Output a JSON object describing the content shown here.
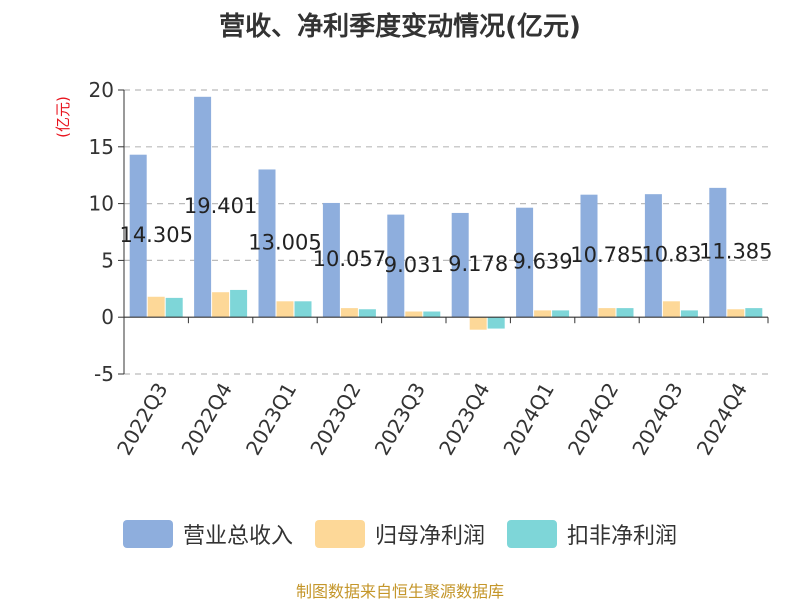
{
  "title": "营收、净利季度变动情况(亿元)",
  "source": "制图数据来自恒生聚源数据库",
  "colors": {
    "revenue": "#8eaedd",
    "net_profit": "#fdd898",
    "deducted_net_profit": "#7ed6d8",
    "unit_label": "#e8121c",
    "source": "#c4962a"
  },
  "chart_data": {
    "type": "bar",
    "title": "营收、净利季度变动情况(亿元)",
    "ylabel": "(亿元)",
    "ylim": [
      -5,
      20
    ],
    "yticks": [
      20,
      15,
      10,
      5,
      0,
      -5
    ],
    "grid": true,
    "legend_position": "bottom",
    "categories": [
      "2022Q3",
      "2022Q4",
      "2023Q1",
      "2023Q2",
      "2023Q3",
      "2023Q4",
      "2024Q1",
      "2024Q2",
      "2024Q3",
      "2024Q4"
    ],
    "series": [
      {
        "name": "营业总收入",
        "values": [
          14.305,
          19.401,
          13.005,
          10.057,
          9.031,
          9.178,
          9.639,
          10.785,
          10.83,
          11.385
        ],
        "labels": [
          "14.305",
          "19.401",
          "13.005",
          "10.057",
          "9.031",
          "9.178",
          "9.639",
          "10.785",
          "10.83",
          "11.385"
        ]
      },
      {
        "name": "归母净利润",
        "values": [
          1.8,
          2.2,
          1.4,
          0.8,
          0.5,
          -1.1,
          0.6,
          0.8,
          1.4,
          0.7
        ]
      },
      {
        "name": "扣非净利润",
        "values": [
          1.7,
          2.4,
          1.4,
          0.7,
          0.5,
          -1.0,
          0.6,
          0.8,
          0.6,
          0.8
        ]
      }
    ]
  }
}
